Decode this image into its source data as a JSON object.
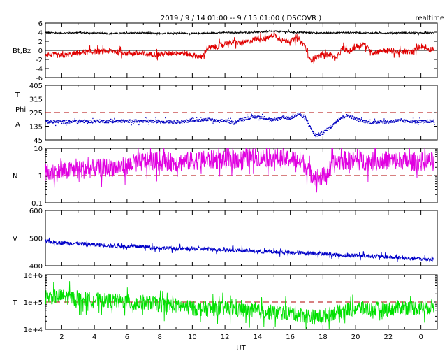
{
  "header": {
    "title": "2019 / 9 / 14   01:00 --  9 / 15  01:00 ( DSCOVR )",
    "mode": "realtime"
  },
  "x_axis": {
    "label": "UT",
    "range_hours": [
      1,
      25
    ],
    "tick_hours": [
      2,
      4,
      6,
      8,
      10,
      12,
      14,
      16,
      18,
      20,
      22,
      24
    ],
    "tick_labels": [
      "2",
      "4",
      "6",
      "8",
      "10",
      "12",
      "14",
      "16",
      "18",
      "20",
      "22",
      "0"
    ]
  },
  "colors": {
    "bt": "#000000",
    "bz": "#e00000",
    "phi": "#0000c0",
    "density": "#e000e0",
    "speed": "#0000c8",
    "temperature": "#00e000",
    "reference": "#b00000"
  },
  "chart_data": [
    {
      "type": "line",
      "panel": "magnetic",
      "ylabel": "Bt,Bz",
      "ylim": [
        -6,
        6
      ],
      "yticks": [
        -6,
        -4,
        -2,
        0,
        2,
        4,
        6
      ],
      "zero_line": 0,
      "series": [
        {
          "name": "Bt",
          "color_key": "bt",
          "x": [
            1,
            2,
            3,
            4,
            5,
            6,
            7,
            8,
            9,
            10,
            11,
            12,
            13,
            14,
            15,
            16,
            17,
            18,
            19,
            20,
            21,
            22,
            23,
            24,
            24.8
          ],
          "values": [
            3.9,
            3.8,
            3.9,
            3.8,
            3.7,
            3.8,
            3.8,
            3.7,
            3.8,
            3.7,
            3.8,
            3.9,
            3.9,
            4.0,
            4.2,
            4.0,
            3.9,
            3.8,
            3.9,
            3.9,
            3.8,
            3.8,
            3.9,
            3.8,
            3.9
          ],
          "noise": 0.15
        },
        {
          "name": "Bz",
          "color_key": "bz",
          "x": [
            1,
            2,
            3,
            4,
            5,
            6,
            7,
            8,
            9,
            9.5,
            10,
            10.6,
            10.9,
            11.5,
            12,
            12.5,
            13,
            13.5,
            14,
            14.5,
            15,
            15.5,
            16,
            16.5,
            16.9,
            17.2,
            17.6,
            18,
            18.5,
            18.8,
            19.2,
            19.6,
            20,
            20.5,
            21,
            21.5,
            22,
            22.5,
            23,
            23.5,
            24,
            24.5,
            24.8
          ],
          "values": [
            -0.8,
            -1.2,
            -0.6,
            -0.3,
            -0.2,
            -0.6,
            -0.8,
            -0.9,
            -0.5,
            -0.6,
            -1.0,
            -1.5,
            0.5,
            0.8,
            1.5,
            1.8,
            1.5,
            2.0,
            2.8,
            2.5,
            3.5,
            2.2,
            2.2,
            2.5,
            1.0,
            -2.2,
            -1.5,
            -1.0,
            -1.0,
            -2.0,
            0.5,
            -0.3,
            0.8,
            1.5,
            -0.5,
            -0.2,
            0.0,
            -0.3,
            -0.5,
            -0.2,
            1.0,
            0.2,
            0.5
          ],
          "noise": 0.6
        }
      ]
    },
    {
      "type": "scatter",
      "panel": "phi",
      "ylabel_lines": [
        "T",
        "Phi",
        "A"
      ],
      "ylim": [
        45,
        405
      ],
      "yticks": [
        45,
        135,
        225,
        315,
        405
      ],
      "reference_line": 225,
      "series": [
        {
          "name": "Phi",
          "color_key": "phi",
          "x": [
            1,
            2,
            3,
            4,
            5,
            6,
            7,
            8,
            8.8,
            9.4,
            10,
            10.5,
            11,
            11.5,
            12,
            12.5,
            13,
            13.5,
            14,
            14.5,
            15,
            15.5,
            16,
            16.5,
            17,
            17.2,
            17.5,
            18,
            18.5,
            19,
            19.5,
            20,
            20.5,
            21,
            21.5,
            22,
            22.5,
            23,
            23.5,
            24,
            24.8
          ],
          "values": [
            168,
            166,
            170,
            171,
            170,
            172,
            170,
            170,
            168,
            165,
            182,
            175,
            185,
            170,
            175,
            160,
            185,
            195,
            200,
            190,
            175,
            200,
            190,
            220,
            175,
            130,
            75,
            95,
            140,
            190,
            210,
            185,
            170,
            160,
            170,
            165,
            175,
            172,
            170,
            168,
            172
          ],
          "noise": 10
        }
      ]
    },
    {
      "type": "line",
      "panel": "density",
      "ylabel": "N",
      "yscale": "log",
      "ylim": [
        0.1,
        10
      ],
      "yticks": [
        0.1,
        1,
        10
      ],
      "ytick_labels": [
        "0.1",
        "1",
        "10"
      ],
      "reference_line": 1,
      "series": [
        {
          "name": "N",
          "color_key": "density",
          "x": [
            1,
            2,
            3,
            4,
            5,
            6,
            6.5,
            7,
            8,
            9,
            10,
            11,
            12,
            13,
            14,
            15,
            16,
            16.8,
            17.2,
            17.6,
            18,
            18.4,
            18.8,
            19.3,
            20,
            21,
            22,
            23,
            24,
            24.8
          ],
          "values": [
            1.2,
            1.4,
            1.6,
            1.8,
            2.0,
            2.2,
            3.0,
            3.2,
            3.2,
            3.0,
            3.5,
            3.8,
            3.6,
            4.0,
            4.8,
            4.5,
            4.2,
            3.0,
            1.2,
            0.9,
            0.9,
            1.5,
            3.0,
            3.6,
            3.4,
            3.3,
            3.6,
            3.4,
            3.2,
            3.3
          ],
          "noise": 0.35
        }
      ]
    },
    {
      "type": "line",
      "panel": "speed",
      "ylabel": "V",
      "ylim": [
        400,
        600
      ],
      "yticks": [
        400,
        500,
        600
      ],
      "series": [
        {
          "name": "V",
          "color_key": "speed",
          "x": [
            1,
            2,
            3,
            4,
            5,
            6,
            7,
            8,
            9,
            10,
            11,
            12,
            13,
            14,
            15,
            16,
            17,
            18,
            18.8,
            19.5,
            20,
            21,
            22,
            23,
            24,
            24.8
          ],
          "values": [
            488,
            483,
            480,
            476,
            473,
            470,
            470,
            465,
            462,
            462,
            460,
            458,
            456,
            452,
            450,
            447,
            446,
            444,
            440,
            437,
            438,
            435,
            432,
            427,
            425,
            423
          ],
          "noise": 7
        }
      ]
    },
    {
      "type": "line",
      "panel": "temperature",
      "ylabel": "T",
      "yscale": "log",
      "ylim": [
        10000,
        1000000
      ],
      "yticks": [
        10000,
        100000,
        1000000
      ],
      "ytick_labels": [
        "1e+4",
        "1e+5",
        "1e+6"
      ],
      "reference_line": 100000,
      "series": [
        {
          "name": "T",
          "color_key": "temperature",
          "x": [
            1,
            2,
            3,
            4,
            5,
            6,
            6.5,
            7,
            8,
            9,
            10,
            11,
            12,
            13,
            14,
            15,
            16,
            17,
            17.5,
            18,
            19,
            20,
            21,
            22,
            23,
            24,
            24.8
          ],
          "values": [
            150000,
            160000,
            130000,
            120000,
            110000,
            105000,
            80000,
            100000,
            80000,
            75000,
            60000,
            55000,
            60000,
            50000,
            45000,
            42000,
            40000,
            32000,
            28000,
            30000,
            45000,
            60000,
            55000,
            55000,
            65000,
            60000,
            70000
          ],
          "noise": 0.28
        }
      ]
    }
  ]
}
